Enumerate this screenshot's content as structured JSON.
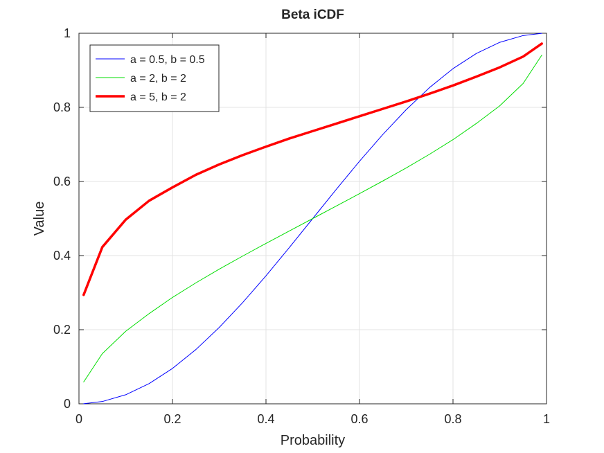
{
  "chart_data": {
    "type": "line",
    "title": "Beta iCDF",
    "xlabel": "Probability",
    "ylabel": "Value",
    "xlim": [
      0,
      1
    ],
    "ylim": [
      0,
      1
    ],
    "xticks": [
      "0",
      "0.2",
      "0.4",
      "0.6",
      "0.8",
      "1"
    ],
    "yticks": [
      "0",
      "0.2",
      "0.4",
      "0.6",
      "0.8",
      "1"
    ],
    "grid": true,
    "legend_position": "top-left",
    "x": [
      0.01,
      0.05,
      0.1,
      0.15,
      0.2,
      0.25,
      0.3,
      0.35,
      0.4,
      0.45,
      0.5,
      0.55,
      0.6,
      0.65,
      0.7,
      0.75,
      0.8,
      0.85,
      0.9,
      0.95,
      0.99
    ],
    "series": [
      {
        "name": "a = 0.5, b = 0.5",
        "color": "#0000ff",
        "line_width": "thin",
        "values": [
          0.0002,
          0.0062,
          0.0245,
          0.0545,
          0.0955,
          0.1464,
          0.2061,
          0.273,
          0.3455,
          0.4218,
          0.5,
          0.5782,
          0.6545,
          0.727,
          0.7939,
          0.8536,
          0.9045,
          0.9455,
          0.9755,
          0.9938,
          0.9998
        ]
      },
      {
        "name": "a = 2, b = 2",
        "color": "#00dd00",
        "line_width": "thin",
        "values": [
          0.0589,
          0.1355,
          0.1958,
          0.2434,
          0.2871,
          0.3264,
          0.3635,
          0.3986,
          0.4329,
          0.4665,
          0.5,
          0.5335,
          0.5671,
          0.6014,
          0.6365,
          0.6736,
          0.7129,
          0.7566,
          0.8042,
          0.8645,
          0.9411
        ]
      },
      {
        "name": "a = 5, b = 2",
        "color": "#ff0000",
        "line_width": "thick",
        "values": [
          0.294,
          0.423,
          0.497,
          0.548,
          0.584,
          0.618,
          0.646,
          0.671,
          0.694,
          0.716,
          0.736,
          0.756,
          0.776,
          0.796,
          0.816,
          0.837,
          0.859,
          0.883,
          0.908,
          0.937,
          0.972
        ]
      }
    ]
  }
}
